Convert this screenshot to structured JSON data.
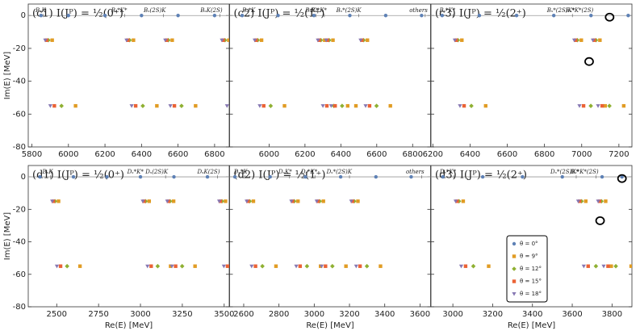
{
  "chart_data": [
    {
      "type": "scatter",
      "title": "(c1) I(Jᴾ) = ½(0⁺)",
      "y_label": "Im(E) [MeV]",
      "xlim": [
        5780,
        6880
      ],
      "xticks": [
        5800,
        6000,
        6200,
        6400,
        6600,
        6800
      ],
      "ylim": [
        -80,
        7
      ],
      "yticks": [
        -80,
        -60,
        -40,
        -20,
        0
      ],
      "thresholds": [
        {
          "label": "BₛK",
          "x": 5863
        },
        {
          "label": "Bₛ*K*",
          "x": 6308
        },
        {
          "label": "Bₛ(2S)K",
          "x": 6520
        },
        {
          "label": "BₛK(2S)",
          "x": 6830
        }
      ],
      "series": [
        {
          "color": "#5e81b5",
          "x": [
            5850,
            6000,
            6200,
            6400,
            6600,
            6800
          ],
          "y": [
            0,
            0,
            0,
            0,
            0,
            0
          ]
        },
        {
          "color": "#e19c24",
          "x": [
            5911,
            6039,
            6356,
            6484,
            6568,
            6696,
            6878
          ],
          "y": [
            -15,
            -55,
            -15,
            -55,
            -15,
            -55,
            -15
          ]
        },
        {
          "color": "#8fb032",
          "x": [
            5890,
            5962,
            6335,
            6407,
            6547,
            6619,
            6857
          ],
          "y": [
            -15,
            -55,
            -15,
            -55,
            -15,
            -55,
            -15
          ]
        },
        {
          "color": "#eb6235",
          "x": [
            5880,
            5923,
            6325,
            6368,
            6537,
            6580,
            6847
          ],
          "y": [
            -15,
            -55,
            -15,
            -55,
            -15,
            -55,
            -15
          ]
        },
        {
          "color": "#8778b3",
          "x": [
            5873,
            5901,
            6318,
            6346,
            6530,
            6558,
            6840,
            6868
          ],
          "y": [
            -15,
            -55,
            -15,
            -55,
            -15,
            -55,
            -15,
            -55
          ]
        }
      ]
    },
    {
      "type": "scatter",
      "title": "(c2) I(Jᴾ) = ½(1⁺)",
      "xlim": [
        5780,
        6900
      ],
      "xticks": [
        6000,
        6200,
        6400,
        6600,
        6800
      ],
      "ylim": [
        -80,
        7
      ],
      "yticks": [
        -80,
        -60,
        -40,
        -20,
        0
      ],
      "thresholds": [
        {
          "label": "Bₛ*K",
          "x": 5910
        },
        {
          "label": "BₛK*",
          "x": 6262
        },
        {
          "label": "Bₛ*K*",
          "x": 6308
        },
        {
          "label": "Bₛ*(2S)K",
          "x": 6500
        },
        {
          "label": "others",
          "x": 6870
        }
      ],
      "series": [
        {
          "color": "#5e81b5",
          "x": [
            5850,
            6050,
            6250,
            6450,
            6650,
            6850
          ],
          "y": [
            0,
            0,
            0,
            0,
            0,
            0
          ]
        },
        {
          "color": "#e19c24",
          "x": [
            5958,
            6086,
            6310,
            6438,
            6356,
            6484,
            6548,
            6676
          ],
          "y": [
            -15,
            -55,
            -15,
            -55,
            -15,
            -55,
            -15,
            -55
          ]
        },
        {
          "color": "#8fb032",
          "x": [
            5937,
            6009,
            6289,
            6361,
            6335,
            6407,
            6527,
            6599
          ],
          "y": [
            -15,
            -55,
            -15,
            -55,
            -15,
            -55,
            -15,
            -55
          ]
        },
        {
          "color": "#eb6235",
          "x": [
            5927,
            5970,
            6279,
            6322,
            6325,
            6368,
            6517,
            6560
          ],
          "y": [
            -15,
            -55,
            -15,
            -55,
            -15,
            -55,
            -15,
            -55
          ]
        },
        {
          "color": "#8778b3",
          "x": [
            5920,
            5948,
            6272,
            6300,
            6318,
            6346,
            6510,
            6538
          ],
          "y": [
            -15,
            -55,
            -15,
            -55,
            -15,
            -55,
            -15,
            -55
          ]
        }
      ]
    },
    {
      "type": "scatter",
      "title": "(c3) I(Jᴾ) = ½(2⁺)",
      "xlim": [
        6190,
        7270
      ],
      "xticks": [
        6200,
        6400,
        6600,
        6800,
        7000,
        7200
      ],
      "ylim": [
        -80,
        7
      ],
      "yticks": [
        -80,
        -60,
        -40,
        -20,
        0
      ],
      "thresholds": [
        {
          "label": "Bₛ*K*",
          "x": 6308
        },
        {
          "label": "Bₛ*(2S)K*",
          "x": 6950
        },
        {
          "label": "Bₛ*K*(2S)",
          "x": 7050
        }
      ],
      "highlights": [
        {
          "x": 7150,
          "y": -1
        },
        {
          "x": 7040,
          "y": -28
        }
      ],
      "series": [
        {
          "color": "#5e81b5",
          "x": [
            6250,
            6450,
            6650,
            6850,
            7050,
            7250
          ],
          "y": [
            0,
            0,
            0,
            0,
            0,
            0
          ]
        },
        {
          "color": "#e19c24",
          "x": [
            6356,
            6484,
            6998,
            7126,
            7098,
            7226
          ],
          "y": [
            -15,
            -55,
            -15,
            -55,
            -15,
            -55
          ]
        },
        {
          "color": "#8fb032",
          "x": [
            6335,
            6407,
            6977,
            7049,
            7077,
            7149
          ],
          "y": [
            -15,
            -55,
            -15,
            -55,
            -15,
            -55
          ]
        },
        {
          "color": "#eb6235",
          "x": [
            6325,
            6368,
            6967,
            7010,
            7067,
            7110
          ],
          "y": [
            -15,
            -55,
            -15,
            -55,
            -15,
            -55
          ]
        },
        {
          "color": "#8778b3",
          "x": [
            6318,
            6346,
            6960,
            6988,
            7060,
            7088
          ],
          "y": [
            -15,
            -55,
            -15,
            -55,
            -15,
            -55
          ]
        }
      ]
    },
    {
      "type": "scatter",
      "title": "(d1) I(Jᴾ) = ½(0⁺)",
      "y_label": "Im(E) [MeV]",
      "x_label": "Re(E) [MeV]",
      "xlim": [
        2330,
        3530
      ],
      "xticks": [
        2500,
        2750,
        3000,
        3250,
        3500
      ],
      "ylim": [
        -80,
        7
      ],
      "yticks": [
        -80,
        -60,
        -40,
        -20,
        0
      ],
      "thresholds": [
        {
          "label": "DₛK",
          "x": 2463
        },
        {
          "label": "Dₛ*K*",
          "x": 3004
        },
        {
          "label": "Dₛ(2S)K",
          "x": 3150
        },
        {
          "label": "DₛK(2S)",
          "x": 3460
        }
      ],
      "series": [
        {
          "color": "#5e81b5",
          "x": [
            2400,
            2600,
            2800,
            3000,
            3200,
            3400
          ],
          "y": [
            0,
            0,
            0,
            0,
            0,
            0
          ]
        },
        {
          "color": "#e19c24",
          "x": [
            2511,
            2639,
            3052,
            3180,
            3198,
            3326,
            3508
          ],
          "y": [
            -15,
            -55,
            -15,
            -55,
            -15,
            -55,
            -15
          ]
        },
        {
          "color": "#8fb032",
          "x": [
            2490,
            2562,
            3031,
            3103,
            3177,
            3249,
            3487
          ],
          "y": [
            -15,
            -55,
            -15,
            -55,
            -15,
            -55,
            -15
          ]
        },
        {
          "color": "#eb6235",
          "x": [
            2480,
            2523,
            3021,
            3064,
            3167,
            3210,
            3477,
            3520
          ],
          "y": [
            -15,
            -55,
            -15,
            -55,
            -15,
            -55,
            -15,
            -55
          ]
        },
        {
          "color": "#8778b3",
          "x": [
            2473,
            2501,
            3014,
            3042,
            3160,
            3188,
            3470,
            3498
          ],
          "y": [
            -15,
            -55,
            -15,
            -55,
            -15,
            -55,
            -15,
            -55
          ]
        }
      ]
    },
    {
      "type": "scatter",
      "title": "(d2) I(Jᴾ) = ½(1⁺)",
      "x_label": "Re(E) [MeV]",
      "xlim": [
        2520,
        3660
      ],
      "xticks": [
        2600,
        2800,
        3000,
        3200,
        3400,
        3600
      ],
      "ylim": [
        -80,
        7
      ],
      "yticks": [
        -80,
        -60,
        -40,
        -20,
        0
      ],
      "thresholds": [
        {
          "label": "Dₛ*K",
          "x": 2607
        },
        {
          "label": "DₛK*",
          "x": 2860
        },
        {
          "label": "Dₛ*K*",
          "x": 3004
        },
        {
          "label": "Dₛ*(2S)K",
          "x": 3200
        },
        {
          "label": "others",
          "x": 3610
        }
      ],
      "series": [
        {
          "color": "#5e81b5",
          "x": [
            2550,
            2750,
            2950,
            3150,
            3350,
            3550
          ],
          "y": [
            0,
            0,
            0,
            0,
            0,
            0
          ]
        },
        {
          "color": "#e19c24",
          "x": [
            2655,
            2783,
            2908,
            3036,
            3052,
            3180,
            3248,
            3376
          ],
          "y": [
            -15,
            -55,
            -15,
            -55,
            -15,
            -55,
            -15,
            -55
          ]
        },
        {
          "color": "#8fb032",
          "x": [
            2634,
            2706,
            2887,
            2959,
            3031,
            3103,
            3227,
            3299
          ],
          "y": [
            -15,
            -55,
            -15,
            -55,
            -15,
            -55,
            -15,
            -55
          ]
        },
        {
          "color": "#eb6235",
          "x": [
            2624,
            2667,
            2877,
            2920,
            3021,
            3064,
            3217,
            3260
          ],
          "y": [
            -15,
            -55,
            -15,
            -55,
            -15,
            -55,
            -15,
            -55
          ]
        },
        {
          "color": "#8778b3",
          "x": [
            2617,
            2645,
            2870,
            2898,
            3014,
            3042,
            3210,
            3238
          ],
          "y": [
            -15,
            -55,
            -15,
            -55,
            -15,
            -55,
            -15,
            -55
          ]
        }
      ]
    },
    {
      "type": "scatter",
      "title": "(d3) I(Jᴾ) = ½(2⁺)",
      "x_label": "Re(E) [MeV]",
      "legend": "lower right",
      "xlim": [
        2890,
        3900
      ],
      "xticks": [
        3000,
        3200,
        3400,
        3600,
        3800
      ],
      "ylim": [
        -80,
        7
      ],
      "yticks": [
        -80,
        -60,
        -40,
        -20,
        0
      ],
      "thresholds": [
        {
          "label": "Dₛ*K*",
          "x": 3004
        },
        {
          "label": "Dₛ*(2S)K*",
          "x": 3620
        },
        {
          "label": "Dₛ*K*(2S)",
          "x": 3720
        }
      ],
      "highlights": [
        {
          "x": 3850,
          "y": -1
        },
        {
          "x": 3740,
          "y": -27
        }
      ],
      "series": [
        {
          "name": "θ = 0°",
          "color": "#5e81b5",
          "x": [
            2950,
            3150,
            3350,
            3550,
            3750,
            3850
          ],
          "y": [
            0,
            0,
            0,
            0,
            0,
            0
          ]
        },
        {
          "name": "θ = 9°",
          "color": "#e19c24",
          "x": [
            3052,
            3180,
            3668,
            3796,
            3768,
            3896
          ],
          "y": [
            -15,
            -55,
            -15,
            -55,
            -15,
            -55
          ]
        },
        {
          "name": "θ = 12°",
          "color": "#8fb032",
          "x": [
            3031,
            3103,
            3647,
            3719,
            3747,
            3819
          ],
          "y": [
            -15,
            -55,
            -15,
            -55,
            -15,
            -55
          ]
        },
        {
          "name": "θ = 15°",
          "color": "#eb6235",
          "x": [
            3021,
            3064,
            3637,
            3680,
            3737,
            3780
          ],
          "y": [
            -15,
            -55,
            -15,
            -55,
            -15,
            -55
          ]
        },
        {
          "name": "θ = 18°",
          "color": "#8778b3",
          "x": [
            3014,
            3042,
            3630,
            3658,
            3730,
            3758
          ],
          "y": [
            -15,
            -55,
            -15,
            -55,
            -15,
            -55
          ]
        }
      ]
    }
  ]
}
